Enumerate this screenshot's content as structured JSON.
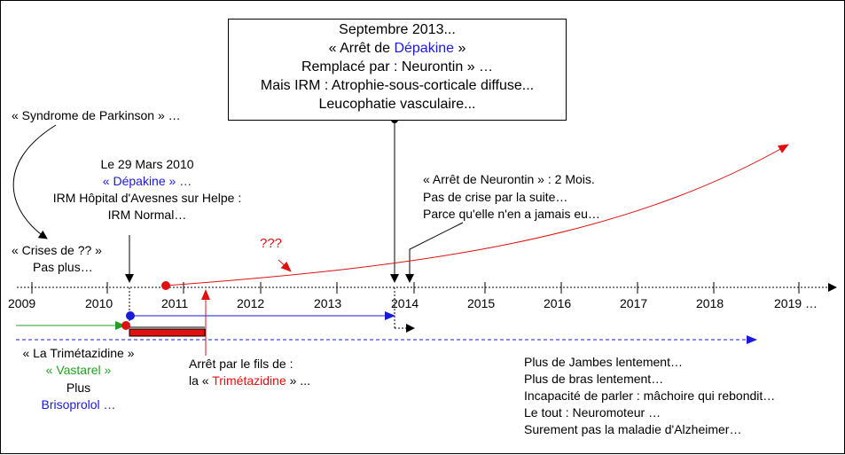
{
  "top_box": {
    "line1": "Septembre 2013...",
    "line2_pre": "« Arrêt de ",
    "line2_drug": "Dépakine",
    "line2_post": " »",
    "line3": "Remplacé par : Neurontin » …",
    "line4": "Mais IRM : Atrophie-sous-corticale diffuse...",
    "line5": "Leucophatie vasculaire..."
  },
  "parkinson": "« Syndrome de Parkinson » …",
  "crises": {
    "line1": "« Crises de ?? »",
    "line2": "Pas plus…"
  },
  "mars_2010": {
    "line1": "Le 29 Mars 2010",
    "line2": "« Dépakine » …",
    "line3": "IRM Hôpital d'Avesnes sur Helpe :",
    "line4": "IRM Normal…"
  },
  "question": "???",
  "neurontin": {
    "line1": "« Arrêt de Neurontin » : 2 Mois.",
    "line2": "Pas de crise par la suite…",
    "line3": "Parce qu'elle n'en a jamais eu…"
  },
  "years": [
    "2009",
    "2010",
    "2011",
    "2012",
    "2013",
    "2014",
    "2015",
    "2016",
    "2017",
    "2018",
    "2019 …"
  ],
  "trimetazidine_label": {
    "line1": "« La Trimétazidine »",
    "line2": "« Vastarel »",
    "line3": "Plus",
    "line4": "Brisoprolol …"
  },
  "arret_fils": {
    "line1": "Arrêt par le fils de :",
    "line2_pre": "la « ",
    "line2_drug": "Trimétazidine",
    "line2_post": " » ..."
  },
  "symptoms": [
    "Plus de Jambes lentement…",
    "Plus de bras lentement…",
    "Incapacité de parler : mâchoire qui rebondit…",
    "Le tout : Neuromoteur …",
    "Surement pas la maladie d'Alzheimer…"
  ],
  "colors": {
    "red": "#e01010",
    "blue": "#1a1ad9",
    "green": "#22a022",
    "black": "#000000"
  }
}
